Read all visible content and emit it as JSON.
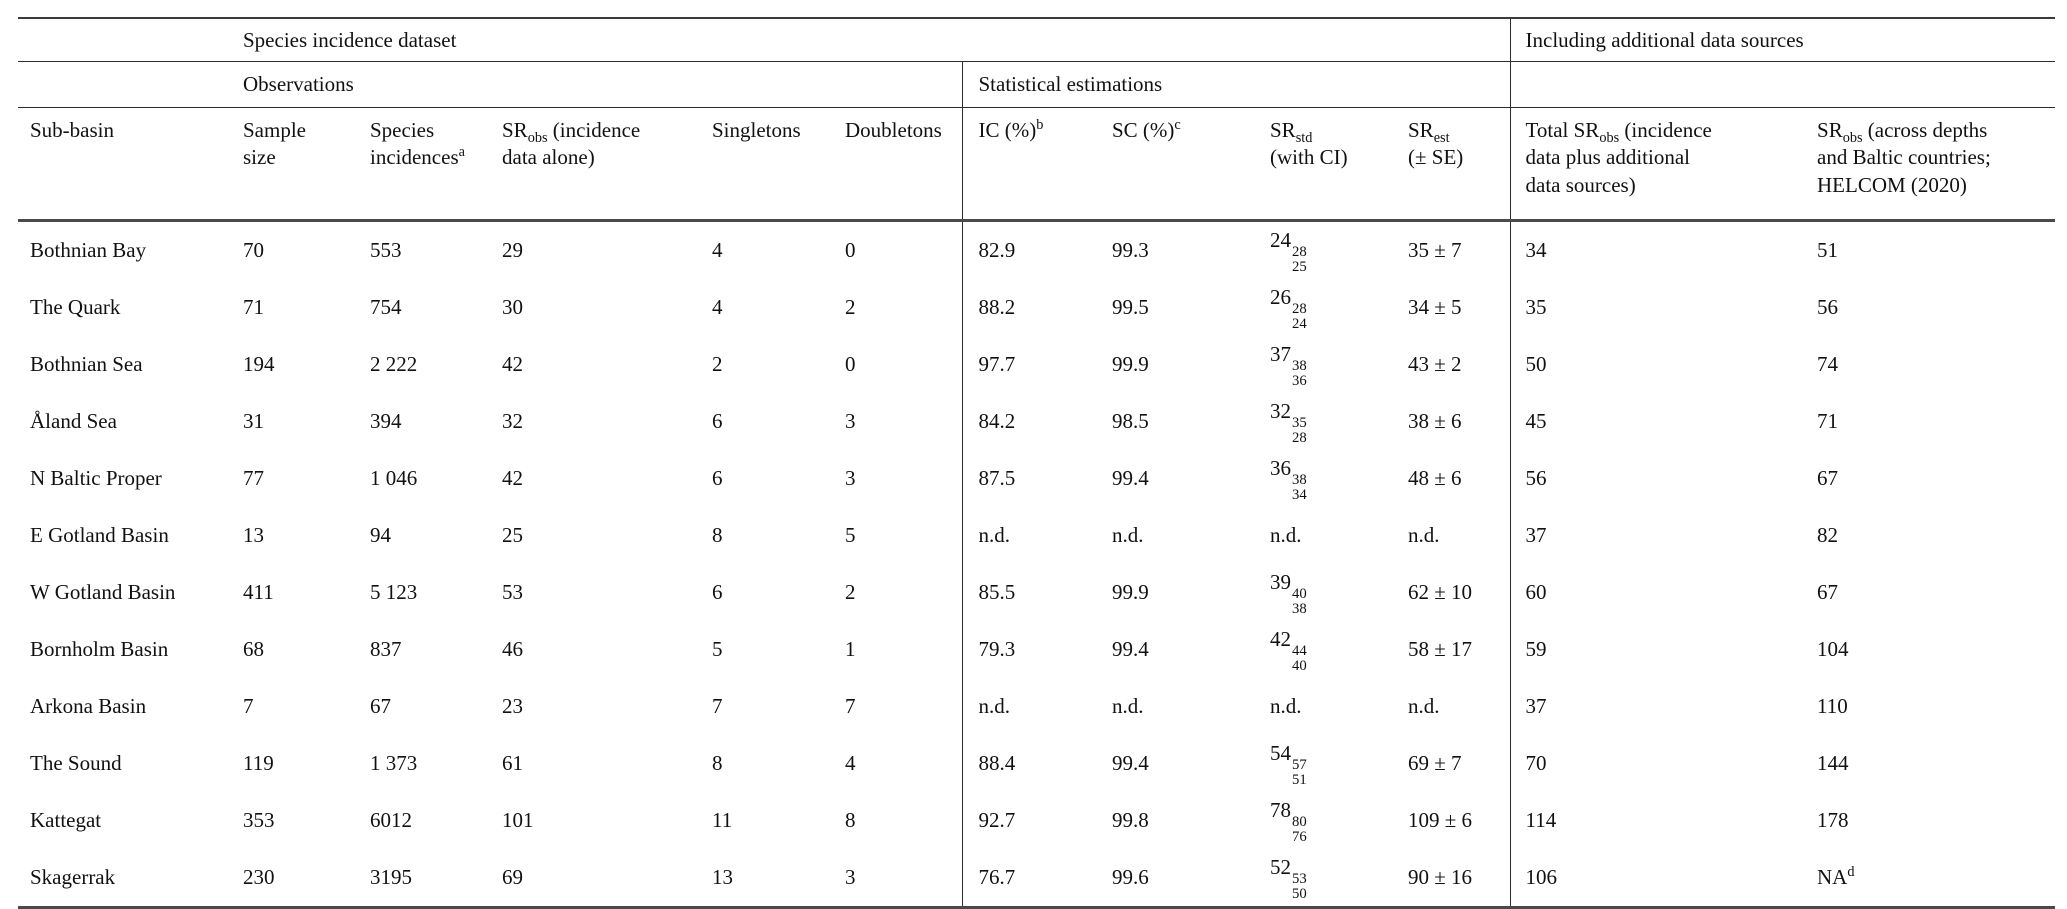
{
  "table": {
    "title_semantic": "Species richness by Baltic sub-basin",
    "group_headers": {
      "species_incidence_dataset": "Species incidence dataset",
      "including_additional": "Including additional data sources",
      "observations": "Observations",
      "statistical_estimations": "Statistical estimations"
    },
    "columns": [
      {
        "id": "sub_basin",
        "label": "Sub-basin"
      },
      {
        "id": "sample_size",
        "label": "Sample\nsize"
      },
      {
        "id": "species_incidences",
        "label": "Species\nincidences^{a}"
      },
      {
        "id": "sr_obs_incidence_alone",
        "label": "SR_{obs} (incidence\ndata alone)"
      },
      {
        "id": "singletons",
        "label": "Singletons"
      },
      {
        "id": "doubletons",
        "label": "Doubletons"
      },
      {
        "id": "ic_pct",
        "label": "IC (%)^{b}"
      },
      {
        "id": "sc_pct",
        "label": "SC (%)^{c}"
      },
      {
        "id": "sr_std_ci",
        "label": "SR_{std}\n(with CI)"
      },
      {
        "id": "sr_est_se",
        "label": "SR_{est}\n(± SE)"
      },
      {
        "id": "total_sr_obs",
        "label": "Total SR_{obs} (incidence\ndata plus additional\ndata sources)"
      },
      {
        "id": "sr_obs_helcom",
        "label": "SR_{obs} (across depths\nand Baltic countries;\nHELCOM (2020)"
      }
    ],
    "rows": [
      [
        "Bothnian Bay",
        "70",
        "553",
        "29",
        "4",
        "0",
        "82.9",
        "99.3",
        "24~{28|25}",
        "35 ± 7",
        "34",
        "51"
      ],
      [
        "The Quark",
        "71",
        "754",
        "30",
        "4",
        "2",
        "88.2",
        "99.5",
        "26~{28|24}",
        "34 ± 5",
        "35",
        "56"
      ],
      [
        "Bothnian Sea",
        "194",
        "2 222",
        "42",
        "2",
        "0",
        "97.7",
        "99.9",
        "37~{38|36}",
        "43 ± 2",
        "50",
        "74"
      ],
      [
        "Åland Sea",
        "31",
        "394",
        "32",
        "6",
        "3",
        "84.2",
        "98.5",
        "32~{35|28}",
        "38 ± 6",
        "45",
        "71"
      ],
      [
        "N Baltic Proper",
        "77",
        "1 046",
        "42",
        "6",
        "3",
        "87.5",
        "99.4",
        "36~{38|34}",
        "48 ± 6",
        "56",
        "67"
      ],
      [
        "E Gotland Basin",
        "13",
        "94",
        "25",
        "8",
        "5",
        "n.d.",
        "n.d.",
        "n.d.",
        "n.d.",
        "37",
        "82"
      ],
      [
        "W Gotland Basin",
        "411",
        "5 123",
        "53",
        "6",
        "2",
        "85.5",
        "99.9",
        "39~{40|38}",
        "62 ± 10",
        "60",
        "67"
      ],
      [
        "Bornholm Basin",
        "68",
        "837",
        "46",
        "5",
        "1",
        "79.3",
        "99.4",
        "42~{44|40}",
        "58 ± 17",
        "59",
        "104"
      ],
      [
        "Arkona Basin",
        "7",
        "67",
        "23",
        "7",
        "7",
        "n.d.",
        "n.d.",
        "n.d.",
        "n.d.",
        "37",
        "110"
      ],
      [
        "The Sound",
        "119",
        "1 373",
        "61",
        "8",
        "4",
        "88.4",
        "99.4",
        "54~{57|51}",
        "69 ± 7",
        "70",
        "144"
      ],
      [
        "Kattegat",
        "353",
        "6012",
        "101",
        "11",
        "8",
        "92.7",
        "99.8",
        "78~{80|76}",
        "109 ± 6",
        "114",
        "178"
      ],
      [
        "Skagerrak",
        "230",
        "3195",
        "69",
        "13",
        "3",
        "76.7",
        "99.6",
        "52~{53|50}",
        "90 ± 16",
        "106",
        "NA^{d}"
      ]
    ]
  }
}
